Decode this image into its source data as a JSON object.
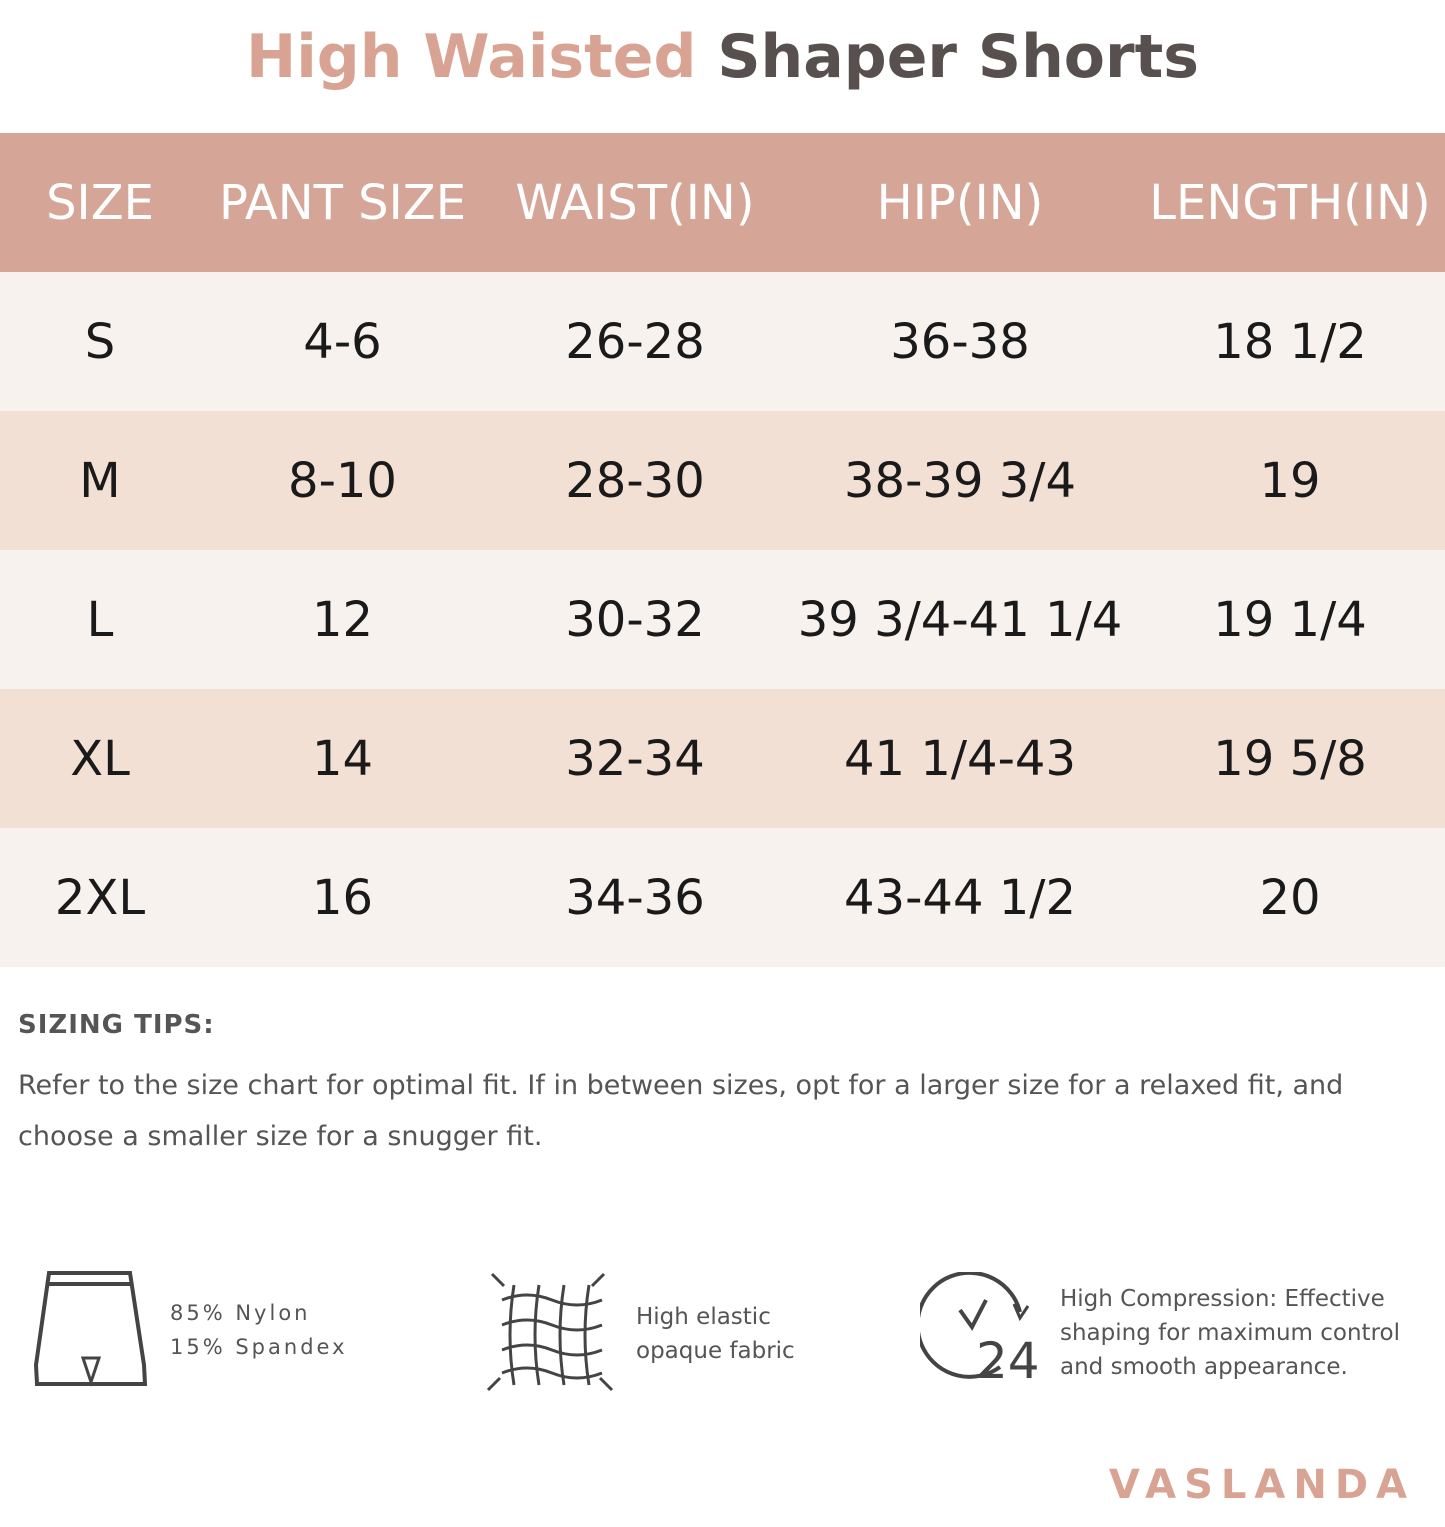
{
  "title": {
    "part1": "High Waisted",
    "part2": "Shaper Shorts"
  },
  "colors": {
    "accent": "#d5a698",
    "title_accent": "#d9a393",
    "row_light": "#f8f2ee",
    "row_dark": "#f3e0d5"
  },
  "table": {
    "headers": [
      "SIZE",
      "PANT SIZE",
      "WAIST(IN)",
      "HIP(IN)",
      "LENGTH(IN)"
    ],
    "rows": [
      [
        "S",
        "4-6",
        "26-28",
        "36-38",
        "18 1/2"
      ],
      [
        "M",
        "8-10",
        "28-30",
        "38-39 3/4",
        "19"
      ],
      [
        "L",
        "12",
        "30-32",
        "39 3/4-41 1/4",
        "19 1/4"
      ],
      [
        "XL",
        "14",
        "32-34",
        "41 1/4-43",
        "19 5/8"
      ],
      [
        "2XL",
        "16",
        "34-36",
        "43-44 1/2",
        "20"
      ]
    ]
  },
  "tips": {
    "heading": "SIZING TIPS:",
    "text": "Refer to the size chart for optimal fit. If in between sizes, opt for a  larger size for a relaxed fit, and choose a smaller size for a snugger fit."
  },
  "features": [
    {
      "icon": "shorts-icon",
      "line1": "85% Nylon",
      "line2": "15% Spandex"
    },
    {
      "icon": "stretch-fabric-icon",
      "line1": "High elastic",
      "line2": "opaque fabric"
    },
    {
      "icon": "clock-24-icon",
      "line1": "High Compression: Effective",
      "line2": "shaping for maximum control",
      "line3": "and smooth appearance.",
      "icon_text": "24"
    }
  ],
  "brand": "VASLANDA"
}
